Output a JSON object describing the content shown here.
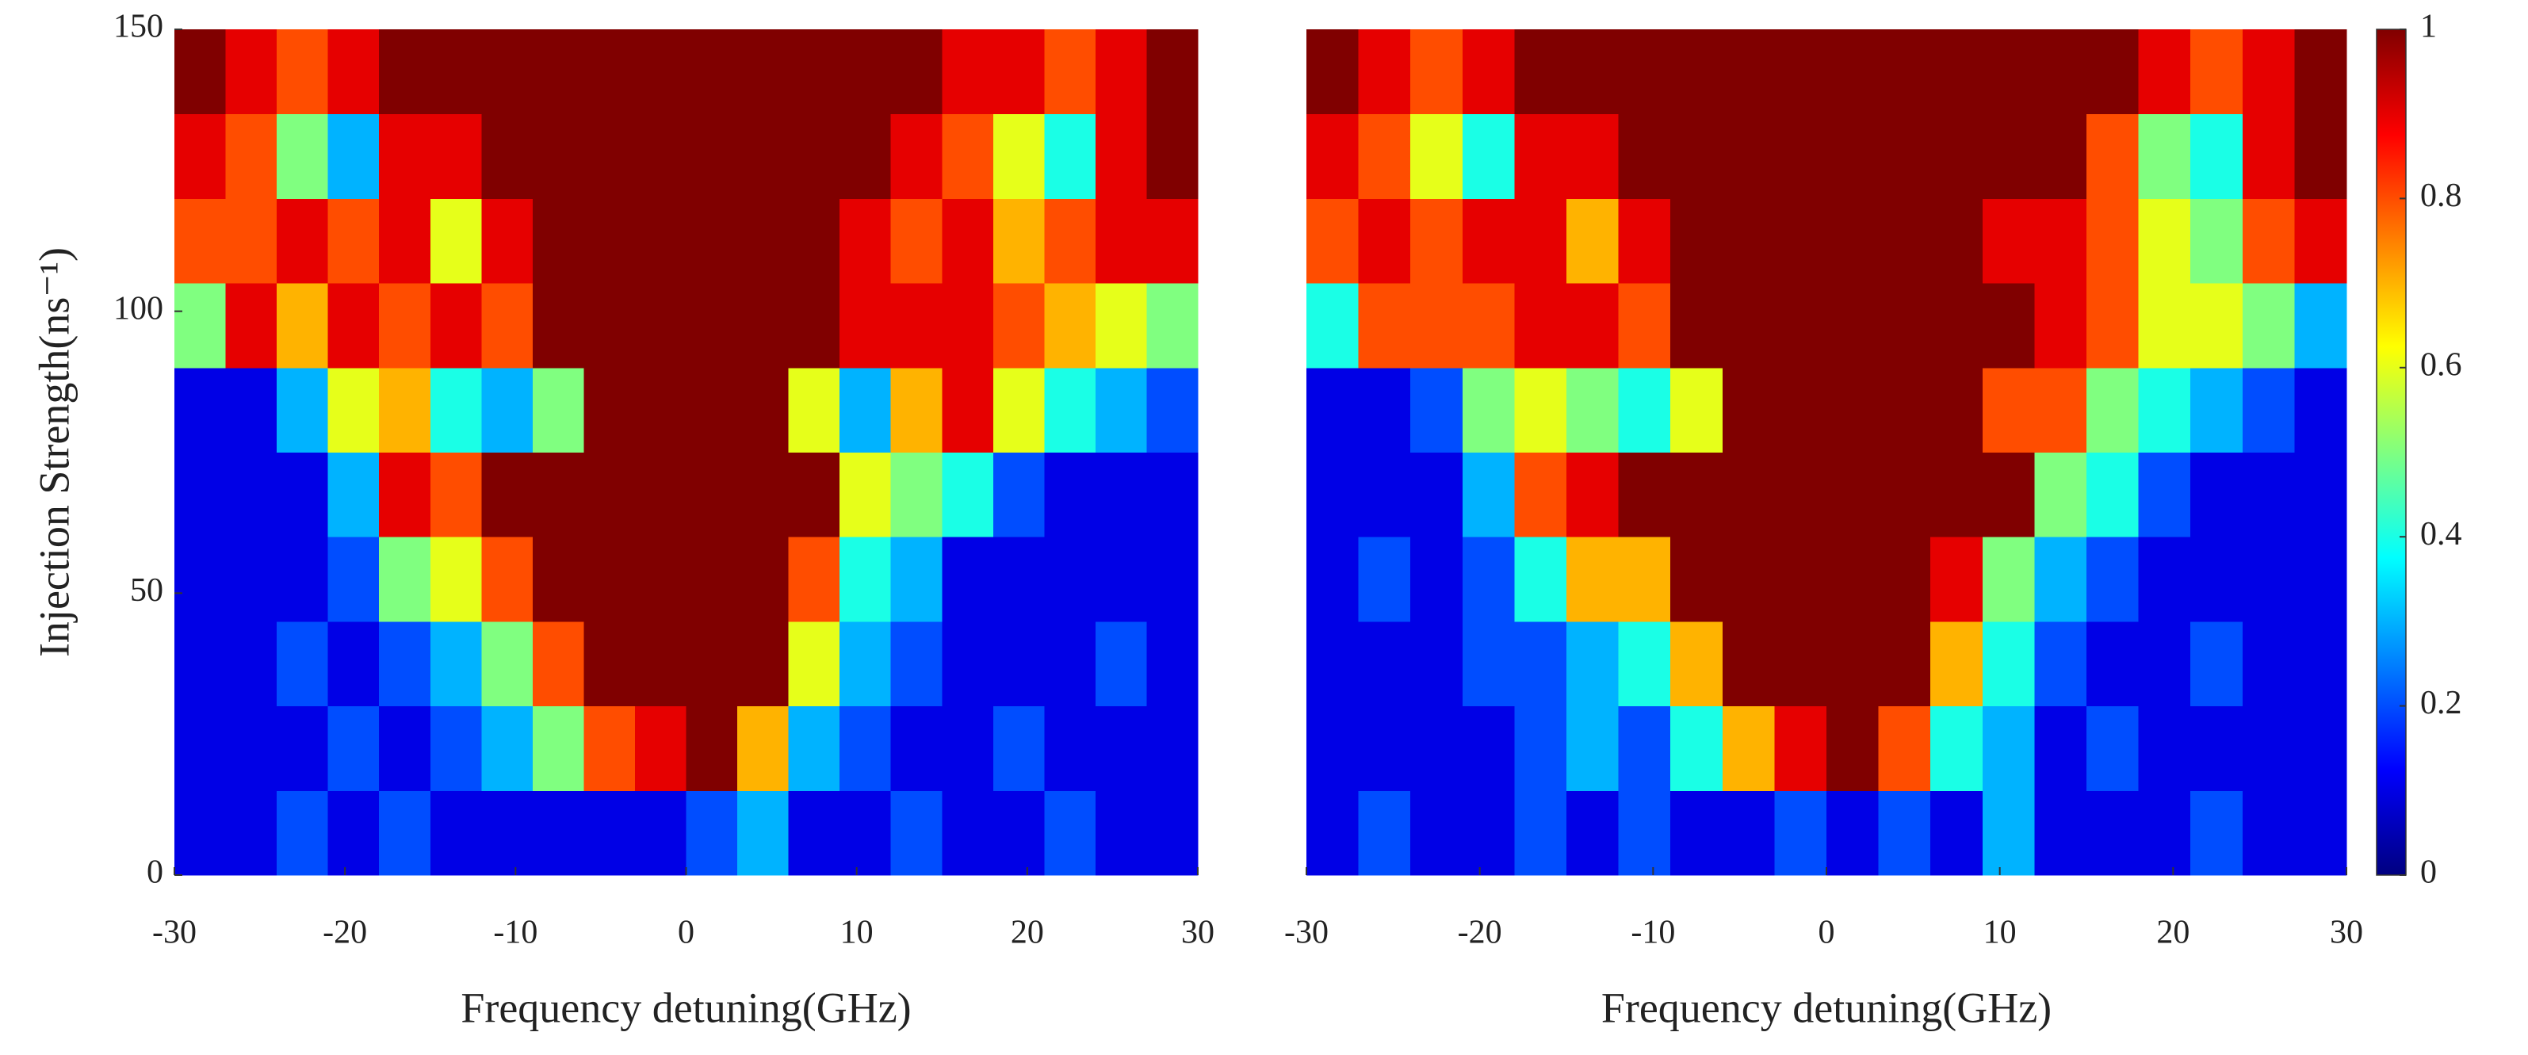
{
  "chart_data": [
    {
      "type": "heatmap",
      "xlabel": "Frequency detuning(GHz)",
      "ylabel": "Injection Strength(ns⁻¹)",
      "xlim": [
        -30,
        30
      ],
      "ylim": [
        0,
        150
      ],
      "xticks": [
        -30,
        -20,
        -10,
        0,
        10,
        20,
        30
      ],
      "yticks": [
        0,
        50,
        100,
        150
      ],
      "xbins": [
        -30,
        -27,
        -24,
        -21,
        -18,
        -15,
        -12,
        -9,
        -6,
        -3,
        0,
        3,
        6,
        9,
        12,
        15,
        18,
        21,
        24,
        27,
        30
      ],
      "ybins": [
        0,
        15,
        30,
        45,
        60,
        75,
        90,
        105,
        120,
        135,
        150
      ],
      "values": [
        [
          0.1,
          0.1,
          0.2,
          0.1,
          0.2,
          0.1,
          0.1,
          0.1,
          0.1,
          0.1,
          0.2,
          0.3,
          0.1,
          0.1,
          0.2,
          0.1,
          0.1,
          0.2,
          0.1,
          0.1
        ],
        [
          0.1,
          0.1,
          0.1,
          0.2,
          0.1,
          0.2,
          0.3,
          0.5,
          0.8,
          0.9,
          1,
          0.7,
          0.3,
          0.2,
          0.1,
          0.1,
          0.2,
          0.1,
          0.1,
          0.1
        ],
        [
          0.1,
          0.1,
          0.2,
          0.1,
          0.2,
          0.3,
          0.5,
          0.8,
          1,
          1,
          1,
          1,
          0.6,
          0.3,
          0.2,
          0.1,
          0.1,
          0.1,
          0.2,
          0.1
        ],
        [
          0.1,
          0.1,
          0.1,
          0.2,
          0.5,
          0.6,
          0.8,
          1,
          1,
          1,
          1,
          1,
          0.8,
          0.4,
          0.3,
          0.1,
          0.1,
          0.1,
          0.1,
          0.1
        ],
        [
          0.1,
          0.1,
          0.1,
          0.3,
          0.9,
          0.8,
          1,
          1,
          1,
          1,
          1,
          1,
          1,
          0.6,
          0.5,
          0.4,
          0.2,
          0.1,
          0.1,
          0.1
        ],
        [
          0.1,
          0.1,
          0.3,
          0.6,
          0.7,
          0.4,
          0.3,
          0.5,
          1,
          1,
          1,
          1,
          0.6,
          0.3,
          0.7,
          0.9,
          0.6,
          0.4,
          0.3,
          0.2
        ],
        [
          0.5,
          0.9,
          0.7,
          0.9,
          0.8,
          0.9,
          0.8,
          1,
          1,
          1,
          1,
          1,
          1,
          0.9,
          0.9,
          0.9,
          0.8,
          0.7,
          0.6,
          0.5
        ],
        [
          0.8,
          0.8,
          0.9,
          0.8,
          0.9,
          0.6,
          0.9,
          1,
          1,
          1,
          1,
          1,
          1,
          0.9,
          0.8,
          0.9,
          0.7,
          0.8,
          0.9,
          0.9
        ],
        [
          0.9,
          0.8,
          0.5,
          0.3,
          0.9,
          0.9,
          1,
          1,
          1,
          1,
          1,
          1,
          1,
          1,
          0.9,
          0.8,
          0.6,
          0.4,
          0.9,
          1
        ],
        [
          1,
          0.9,
          0.8,
          0.9,
          1,
          1,
          1,
          1,
          1,
          1,
          1,
          1,
          1,
          1,
          1,
          0.9,
          0.9,
          0.8,
          0.9,
          1
        ]
      ]
    },
    {
      "type": "heatmap",
      "xlabel": "Frequency detuning(GHz)",
      "xlim": [
        -30,
        30
      ],
      "ylim": [
        0,
        150
      ],
      "xticks": [
        -30,
        -20,
        -10,
        0,
        10,
        20,
        30
      ],
      "xbins": [
        -30,
        -27,
        -24,
        -21,
        -18,
        -15,
        -12,
        -9,
        -6,
        -3,
        0,
        3,
        6,
        9,
        12,
        15,
        18,
        21,
        24,
        27,
        30
      ],
      "ybins": [
        0,
        15,
        30,
        45,
        60,
        75,
        90,
        105,
        120,
        135,
        150
      ],
      "values": [
        [
          0.1,
          0.2,
          0.1,
          0.1,
          0.2,
          0.1,
          0.2,
          0.1,
          0.1,
          0.2,
          0.1,
          0.2,
          0.1,
          0.3,
          0.1,
          0.1,
          0.1,
          0.2,
          0.1,
          0.1
        ],
        [
          0.1,
          0.1,
          0.1,
          0.1,
          0.2,
          0.3,
          0.2,
          0.4,
          0.7,
          0.9,
          1,
          0.8,
          0.4,
          0.3,
          0.1,
          0.2,
          0.1,
          0.1,
          0.1,
          0.1
        ],
        [
          0.1,
          0.1,
          0.1,
          0.2,
          0.2,
          0.3,
          0.4,
          0.7,
          1,
          1,
          1,
          1,
          0.7,
          0.4,
          0.2,
          0.1,
          0.1,
          0.2,
          0.1,
          0.1
        ],
        [
          0.1,
          0.2,
          0.1,
          0.2,
          0.4,
          0.7,
          0.7,
          1,
          1,
          1,
          1,
          1,
          0.9,
          0.5,
          0.3,
          0.2,
          0.1,
          0.1,
          0.1,
          0.1
        ],
        [
          0.1,
          0.1,
          0.1,
          0.3,
          0.8,
          0.9,
          1,
          1,
          1,
          1,
          1,
          1,
          1,
          1,
          0.5,
          0.4,
          0.2,
          0.1,
          0.1,
          0.1
        ],
        [
          0.1,
          0.1,
          0.2,
          0.5,
          0.6,
          0.5,
          0.4,
          0.6,
          1,
          1,
          1,
          1,
          1,
          0.8,
          0.8,
          0.5,
          0.4,
          0.3,
          0.2,
          0.1
        ],
        [
          0.4,
          0.8,
          0.8,
          0.8,
          0.9,
          0.9,
          0.8,
          1,
          1,
          1,
          1,
          1,
          1,
          1,
          0.9,
          0.8,
          0.6,
          0.6,
          0.5,
          0.3
        ],
        [
          0.8,
          0.9,
          0.8,
          0.9,
          0.9,
          0.7,
          0.9,
          1,
          1,
          1,
          1,
          1,
          1,
          0.9,
          0.9,
          0.8,
          0.6,
          0.5,
          0.8,
          0.9
        ],
        [
          0.9,
          0.8,
          0.6,
          0.4,
          0.9,
          0.9,
          1,
          1,
          1,
          1,
          1,
          1,
          1,
          1,
          1,
          0.8,
          0.5,
          0.4,
          0.9,
          1
        ],
        [
          1,
          0.9,
          0.8,
          0.9,
          1,
          1,
          1,
          1,
          1,
          1,
          1,
          1,
          1,
          1,
          1,
          1,
          0.9,
          0.8,
          0.9,
          1
        ]
      ]
    },
    {
      "type": "colorbar",
      "ylim": [
        0,
        1
      ],
      "yticks": [
        0,
        0.2,
        0.4,
        0.6,
        0.8,
        1
      ],
      "colors": [
        "#000080",
        "#0000ff",
        "#0080ff",
        "#00ffff",
        "#80ff80",
        "#ffff00",
        "#ff8000",
        "#ff0000",
        "#800000"
      ]
    }
  ]
}
